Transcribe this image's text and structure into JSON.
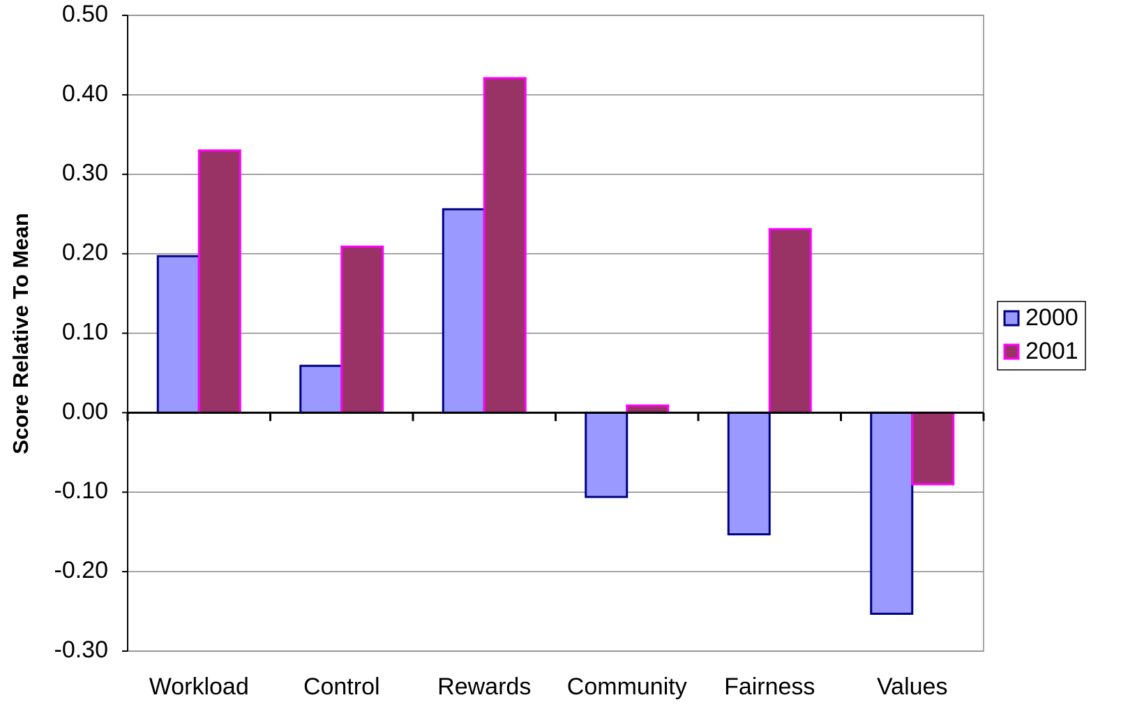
{
  "chart_data": {
    "type": "bar",
    "y_axis_label": "Score Relative To Mean",
    "categories": [
      "Workload",
      "Control",
      "Rewards",
      "Community",
      "Fairness",
      "Values"
    ],
    "series": [
      {
        "name": "2000",
        "color": "#9999ff",
        "edge_color": "#000080",
        "values": [
          0.197,
          0.059,
          0.256,
          -0.106,
          -0.153,
          -0.253
        ]
      },
      {
        "name": "2001",
        "color": "#993366",
        "edge_color": "#ff00ff",
        "values": [
          0.33,
          0.209,
          0.421,
          0.009,
          0.231,
          -0.09
        ]
      }
    ],
    "ylim": [
      -0.3,
      0.5
    ],
    "yticks": [
      {
        "value": -0.3,
        "label": "-0.30"
      },
      {
        "value": -0.2,
        "label": "-0.20"
      },
      {
        "value": -0.1,
        "label": "-0.10"
      },
      {
        "value": 0,
        "label": "0.00"
      },
      {
        "value": 0.1,
        "label": "0.10"
      },
      {
        "value": 0.2,
        "label": "0.20"
      },
      {
        "value": 0.3,
        "label": "0.30"
      },
      {
        "value": 0.4,
        "label": "0.40"
      },
      {
        "value": 0.5,
        "label": "0.50"
      }
    ],
    "grid": true,
    "legend": "right"
  }
}
